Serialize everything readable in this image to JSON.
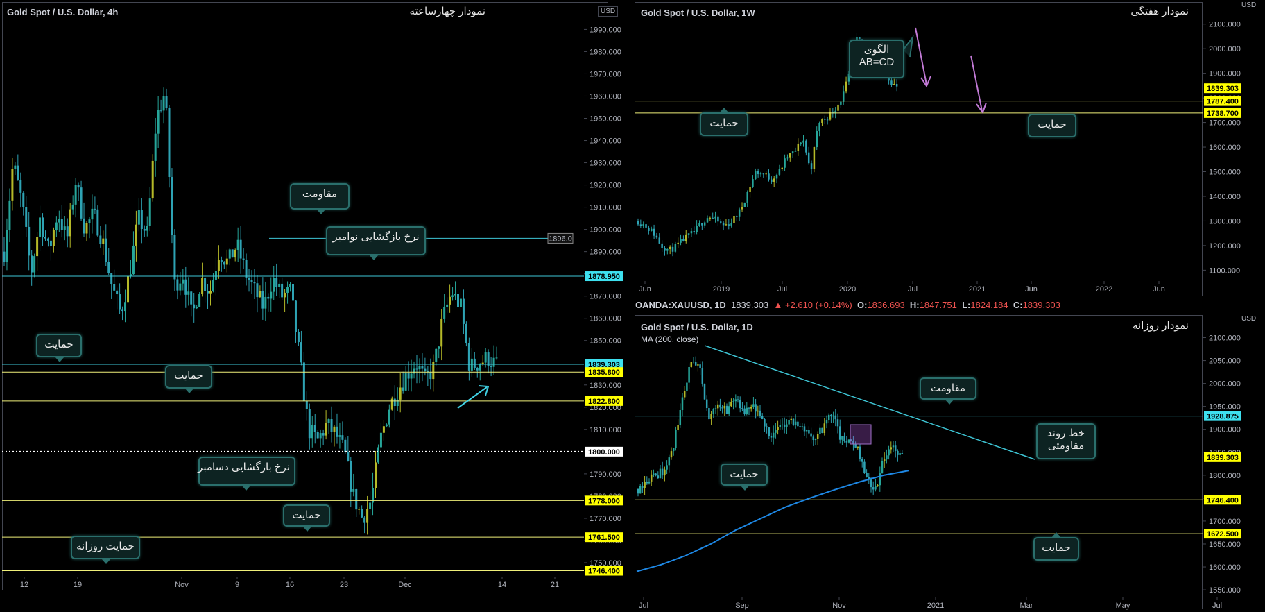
{
  "colors": {
    "bull": "#26a69a",
    "bull_alt": "#b5b928",
    "bear": "#2ea3b4",
    "yellow_line": "#f0f07a",
    "cyan_line": "#3ec6d6",
    "ma": "#1e88e5",
    "arrow_pink": "#c27ad6",
    "arrow_cyan": "#41d3e6"
  },
  "panel_4h": {
    "symbol": "Gold Spot / U.S. Dollar, 4h",
    "name": "نمودار چهارساعته",
    "currency": "USD",
    "callouts": {
      "resistance": "مقاومت",
      "nov_open": "نرخ بازگشایی نوامبر",
      "support1": "حمایت",
      "support2": "حمایت",
      "dec_open": "نرخ بازگشایی دسامبر",
      "support3": "حمایت",
      "daily_support": "حمایت روزانه"
    },
    "marker_label": "1896.0"
  },
  "panel_1w": {
    "symbol": "Gold Spot / U.S. Dollar, 1W",
    "name": "نمودار هفتگی",
    "currency": "USD",
    "callouts": {
      "pattern": "الگوی\nAB=CD",
      "support_left": "حمایت",
      "support_right": "حمایت"
    }
  },
  "panel_1d": {
    "ohlc_line": {
      "ticker": "OANDA:XAUUSD, 1D",
      "last": "1839.303",
      "change": "▲ +2.610 (+0.14%)",
      "o_label": "O:",
      "o": "1836.693",
      "h_label": "H:",
      "h": "1847.751",
      "l_label": "L:",
      "l": "1824.184",
      "c_label": "C:",
      "c": "1839.303"
    },
    "symbol": "Gold Spot / U.S. Dollar, 1D",
    "ma_label": "MA (200, close)",
    "name": "نمودار روزانه",
    "currency": "USD",
    "callouts": {
      "resistance": "مقاومت",
      "trendline": "خط روند\nمقاومتی",
      "support_left": "حمایت",
      "support_right": "حمایت"
    }
  },
  "chart_data": [
    {
      "type": "candlestick",
      "title": "Gold Spot / U.S. Dollar, 4h",
      "ylim": [
        1745,
        1992
      ],
      "y_ticks": [
        "1750.000",
        "1760.000",
        "1770.000",
        "1780.000",
        "1790.000",
        "1810.000",
        "1820.000",
        "1830.000",
        "1850.000",
        "1860.000",
        "1870.000",
        "1880.000",
        "1890.000",
        "1900.000",
        "1910.000",
        "1920.000",
        "1930.000",
        "1940.000",
        "1950.000",
        "1960.000",
        "1970.000",
        "1980.000",
        "1990.000"
      ],
      "x_ticks": [
        "12",
        "19",
        "Nov",
        "9",
        "16",
        "23",
        "Dec",
        "14",
        "21"
      ],
      "price_tags": [
        {
          "label": "1878.950",
          "value": 1878.95,
          "style": "cyan"
        },
        {
          "label": "1839.303",
          "value": 1839.303,
          "style": "cyan"
        },
        {
          "label": "1835.800",
          "value": 1835.8,
          "style": "yellow"
        },
        {
          "label": "1822.800",
          "value": 1822.8,
          "style": "yellow"
        },
        {
          "label": "1800.000",
          "value": 1800.0,
          "style": "white"
        },
        {
          "label": "1778.000",
          "value": 1778.0,
          "style": "yellow"
        },
        {
          "label": "1761.500",
          "value": 1761.5,
          "style": "yellow"
        },
        {
          "label": "1746.400",
          "value": 1746.4,
          "style": "yellow"
        }
      ],
      "path": [
        1890,
        1930,
        1912,
        1880,
        1905,
        1890,
        1908,
        1895,
        1922,
        1900,
        1907,
        1895,
        1875,
        1862,
        1880,
        1905,
        1898,
        1950,
        1962,
        1875,
        1880,
        1860,
        1878,
        1872,
        1890,
        1885,
        1893,
        1880,
        1872,
        1865,
        1878,
        1870,
        1872,
        1842,
        1810,
        1805,
        1812,
        1808,
        1800,
        1780,
        1770,
        1778,
        1805,
        1820,
        1828,
        1835,
        1840,
        1832,
        1838,
        1860,
        1872,
        1865,
        1838,
        1840,
        1842,
        1839
      ]
    },
    {
      "type": "candlestick",
      "title": "Gold Spot / U.S. Dollar, 1W",
      "ylim": [
        1070,
        2150
      ],
      "y_ticks": [
        "1100.000",
        "1200.000",
        "1300.000",
        "1400.000",
        "1500.000",
        "1600.000",
        "1700.000",
        "1800.000",
        "1900.000",
        "2000.000",
        "2100.000"
      ],
      "x_ticks": [
        "Jun",
        "2019",
        "Jul",
        "2020",
        "Jul",
        "2021",
        "Jun",
        "2022",
        "Jun"
      ],
      "price_tags": [
        {
          "label": "1839.303",
          "value": 1839.303,
          "style": "yellow"
        },
        {
          "label": "1787.400",
          "value": 1787.4,
          "style": "yellow"
        },
        {
          "label": "1738.700",
          "value": 1738.7,
          "style": "yellow"
        }
      ],
      "path": [
        1300,
        1280,
        1250,
        1200,
        1180,
        1200,
        1230,
        1250,
        1290,
        1320,
        1300,
        1280,
        1300,
        1340,
        1420,
        1500,
        1490,
        1470,
        1500,
        1560,
        1580,
        1640,
        1500,
        1700,
        1720,
        1750,
        1800,
        1900,
        2050,
        1970,
        1900,
        1930,
        1880,
        1840
      ]
    },
    {
      "type": "candlestick",
      "title": "Gold Spot / U.S. Dollar, 1D",
      "ylim": [
        1535,
        2125
      ],
      "y_ticks": [
        "1550.000",
        "1600.000",
        "1650.000",
        "1700.000",
        "1750.000",
        "1800.000",
        "1850.000",
        "1900.000",
        "1950.000",
        "2000.000",
        "2050.000",
        "2100.000"
      ],
      "x_ticks": [
        "Jul",
        "Sep",
        "Nov",
        "2021",
        "Mar",
        "May",
        "Jul"
      ],
      "series": [
        {
          "name": "MA (200, close)"
        }
      ],
      "price_tags": [
        {
          "label": "1928.875",
          "value": 1928.875,
          "style": "cyan"
        },
        {
          "label": "1839.303",
          "value": 1839.303,
          "style": "yellow"
        },
        {
          "label": "1746.400",
          "value": 1746.4,
          "style": "yellow"
        },
        {
          "label": "1672.500",
          "value": 1672.5,
          "style": "yellow"
        }
      ],
      "path": [
        1770,
        1790,
        1800,
        1810,
        1860,
        1960,
        2050,
        2030,
        1920,
        1960,
        1940,
        1970,
        1930,
        1950,
        1920,
        1890,
        1900,
        1920,
        1910,
        1900,
        1880,
        1900,
        1940,
        1880,
        1870,
        1860,
        1790,
        1770,
        1840,
        1860,
        1839
      ],
      "ma200": [
        1590,
        1605,
        1625,
        1650,
        1680,
        1705,
        1730,
        1750,
        1768,
        1785,
        1800,
        1810
      ]
    }
  ]
}
